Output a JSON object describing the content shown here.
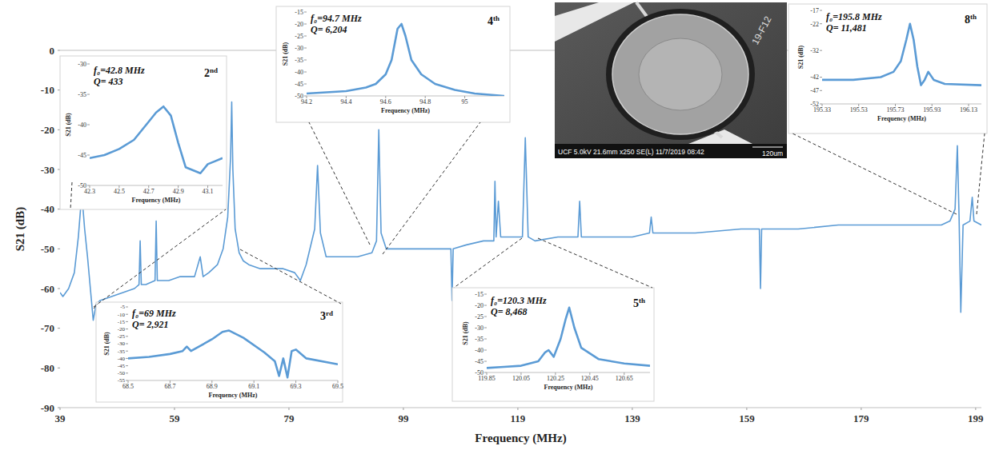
{
  "chart_data": [
    {
      "type": "line",
      "x_label": "Frequency (MHz)",
      "y_label": "S21 (dB)",
      "color": "#5b9bd5",
      "grid": false,
      "xlim": [
        39,
        200
      ],
      "xticks": [
        39,
        59,
        79,
        99,
        119,
        139,
        159,
        179,
        199
      ],
      "ylim": [
        -90,
        0
      ],
      "yticks": [
        -90,
        -80,
        -70,
        -60,
        -50,
        -40,
        -30,
        -20,
        -10,
        0
      ],
      "x": [
        39,
        39.5,
        40.5,
        41.5,
        42.2,
        42.8,
        43.3,
        43.8,
        44.3,
        44.8,
        45.3,
        46,
        48,
        50,
        52,
        52.8,
        53,
        53.2,
        54,
        55.6,
        55.8,
        56,
        58,
        60,
        62.5,
        63.5,
        64,
        65,
        66.5,
        67.5,
        68.3,
        68.8,
        69,
        69.2,
        69.6,
        70.3,
        71,
        72,
        74,
        76,
        78,
        80,
        81,
        82,
        83.5,
        84,
        84.5,
        85.5,
        88,
        91,
        93.5,
        94.3,
        94.7,
        95.1,
        96,
        100,
        104,
        107.3,
        107.5,
        107.7,
        110,
        113,
        114.8,
        115,
        115.2,
        115.6,
        116,
        119.8,
        120.3,
        120.8,
        122,
        126,
        129.5,
        129.8,
        130.1,
        134,
        139,
        142,
        142.3,
        142.6,
        150,
        158,
        161.2,
        161.4,
        161.6,
        168,
        175,
        186,
        193,
        194.5,
        195.4,
        195.8,
        196.1,
        196.4,
        196.8,
        198,
        198.4,
        198.7,
        200
      ],
      "values": [
        -61,
        -62,
        -60,
        -56,
        -47,
        -36,
        -45,
        -52,
        -60,
        -68,
        -64,
        -63,
        -62,
        -61,
        -60,
        -59,
        -48,
        -59,
        -59,
        -58,
        -43,
        -58,
        -58,
        -57,
        -57,
        -52,
        -57,
        -56,
        -54,
        -50,
        -42,
        -27,
        -13,
        -30,
        -45,
        -51,
        -53,
        -54,
        -55,
        -55,
        -55,
        -56,
        -58,
        -54,
        -45,
        -29,
        -46,
        -52,
        -52,
        -52,
        -51,
        -48,
        -20,
        -46,
        -50,
        -50,
        -50,
        -50,
        -63,
        -50,
        -49,
        -48,
        -48,
        -33,
        -47,
        -38,
        -47,
        -47,
        -22,
        -47,
        -48,
        -47,
        -47,
        -38,
        -47,
        -47,
        -47,
        -46,
        -42,
        -46,
        -46,
        -45,
        -45,
        -60,
        -45,
        -45,
        -44,
        -44,
        -44,
        -43,
        -40,
        -24,
        -42,
        -66,
        -44,
        -43,
        -37,
        -43,
        -44
      ]
    },
    {
      "type": "line",
      "x_label": "Frequency (MHz)",
      "y_label": "S21 (dB)",
      "color": "#5b9bd5",
      "grid": false,
      "annotations": [
        "f₀=42.8 MHz",
        "Q= 433",
        "2nd"
      ],
      "xlim": [
        42.3,
        43.2
      ],
      "xticks": [
        42.3,
        42.5,
        42.7,
        42.9,
        43.1
      ],
      "ylim": [
        -50,
        -30
      ],
      "yticks": [
        -50,
        -45,
        -40,
        -35,
        -30
      ],
      "x": [
        42.3,
        42.4,
        42.5,
        42.6,
        42.7,
        42.75,
        42.8,
        42.85,
        42.9,
        42.95,
        43.0,
        43.05,
        43.1,
        43.15,
        43.2
      ],
      "values": [
        -45.5,
        -45,
        -44,
        -42.5,
        -39.5,
        -38,
        -37,
        -38.5,
        -43,
        -47,
        -47.5,
        -48,
        -46.5,
        -46,
        -45.5
      ]
    },
    {
      "type": "line",
      "x_label": "Frequency (MHz)",
      "y_label": "S21 (dB)",
      "color": "#5b9bd5",
      "grid": false,
      "annotations": [
        "f₀=94.7 MHz",
        "Q= 6,204",
        "4th"
      ],
      "xlim": [
        94.2,
        95.2
      ],
      "xticks": [
        94.2,
        94.4,
        94.6,
        94.8,
        95
      ],
      "ylim": [
        -50,
        -15
      ],
      "yticks": [
        -50,
        -45,
        -40,
        -35,
        -30,
        -25,
        -20,
        -15
      ],
      "x": [
        94.2,
        94.3,
        94.4,
        94.5,
        94.55,
        94.6,
        94.63,
        94.66,
        94.68,
        94.7,
        94.73,
        94.78,
        94.85,
        94.95,
        95.05,
        95.2
      ],
      "values": [
        -49,
        -48.5,
        -48,
        -46.5,
        -45,
        -41,
        -35,
        -22,
        -20,
        -25,
        -35,
        -41,
        -45,
        -47.5,
        -49,
        -50
      ]
    },
    {
      "type": "line",
      "x_label": "Frequency (MHz)",
      "y_label": "S21 (dB)",
      "color": "#5b9bd5",
      "grid": false,
      "annotations": [
        "f₀=195.8 MHz",
        "Q= 11,481",
        "8th"
      ],
      "xlim": [
        195.33,
        196.2
      ],
      "xticks": [
        195.33,
        195.53,
        195.73,
        195.93,
        196.13
      ],
      "ylim": [
        -52,
        -17
      ],
      "yticks": [
        -52,
        -47,
        -42,
        -32,
        -22,
        -17
      ],
      "x": [
        195.33,
        195.5,
        195.65,
        195.72,
        195.76,
        195.79,
        195.81,
        195.83,
        195.85,
        195.87,
        195.89,
        195.91,
        195.94,
        196.0,
        196.2
      ],
      "values": [
        -43,
        -43,
        -42,
        -40,
        -36,
        -28,
        -22,
        -28,
        -38,
        -45,
        -43,
        -40,
        -43,
        -44.5,
        -45
      ]
    },
    {
      "type": "line",
      "x_label": "Frequency (MHz)",
      "y_label": "S21 (dB)",
      "color": "#5b9bd5",
      "grid": false,
      "annotations": [
        "f₀=69 MHz",
        "Q= 2,921",
        "3rd"
      ],
      "xlim": [
        68.5,
        69.5
      ],
      "xticks": [
        68.5,
        68.7,
        68.9,
        69.1,
        69.3,
        69.5
      ],
      "ylim": [
        -55,
        -5
      ],
      "yticks": [
        -55,
        -50,
        -45,
        -40,
        -35,
        -30,
        -25,
        -20,
        -15,
        -10,
        -5
      ],
      "x": [
        68.5,
        68.6,
        68.7,
        68.76,
        68.78,
        68.8,
        68.9,
        68.95,
        68.98,
        69.05,
        69.15,
        69.2,
        69.22,
        69.24,
        69.26,
        69.28,
        69.3,
        69.35,
        69.5
      ],
      "values": [
        -40,
        -39,
        -37,
        -35,
        -32,
        -35,
        -27,
        -22,
        -21,
        -26,
        -36,
        -42,
        -52,
        -40,
        -53,
        -35,
        -34,
        -40,
        -44
      ]
    },
    {
      "type": "line",
      "x_label": "Frequency (MHz)",
      "y_label": "S21 (dB)",
      "color": "#5b9bd5",
      "grid": false,
      "annotations": [
        "f₀=120.3 MHz",
        "Q= 8,468",
        "5th"
      ],
      "xlim": [
        119.85,
        120.8
      ],
      "xticks": [
        119.85,
        120.05,
        120.25,
        120.45,
        120.65
      ],
      "ylim": [
        -50,
        -15
      ],
      "yticks": [
        -50,
        -45,
        -40,
        -35,
        -30,
        -25,
        -20,
        -15
      ],
      "x": [
        119.85,
        119.95,
        120.05,
        120.15,
        120.19,
        120.21,
        120.24,
        120.28,
        120.31,
        120.33,
        120.36,
        120.4,
        120.5,
        120.65,
        120.8
      ],
      "values": [
        -48,
        -47.5,
        -47,
        -45,
        -41,
        -40,
        -43,
        -35,
        -26,
        -21,
        -30,
        -39,
        -44,
        -46,
        -47
      ]
    }
  ],
  "sem_image": {
    "caption": "UCF 5.0kV 21.6mm x250 SE(L) 11/7/2019 08:42",
    "scale_bar": "120um",
    "sample_label": "19-F12"
  }
}
